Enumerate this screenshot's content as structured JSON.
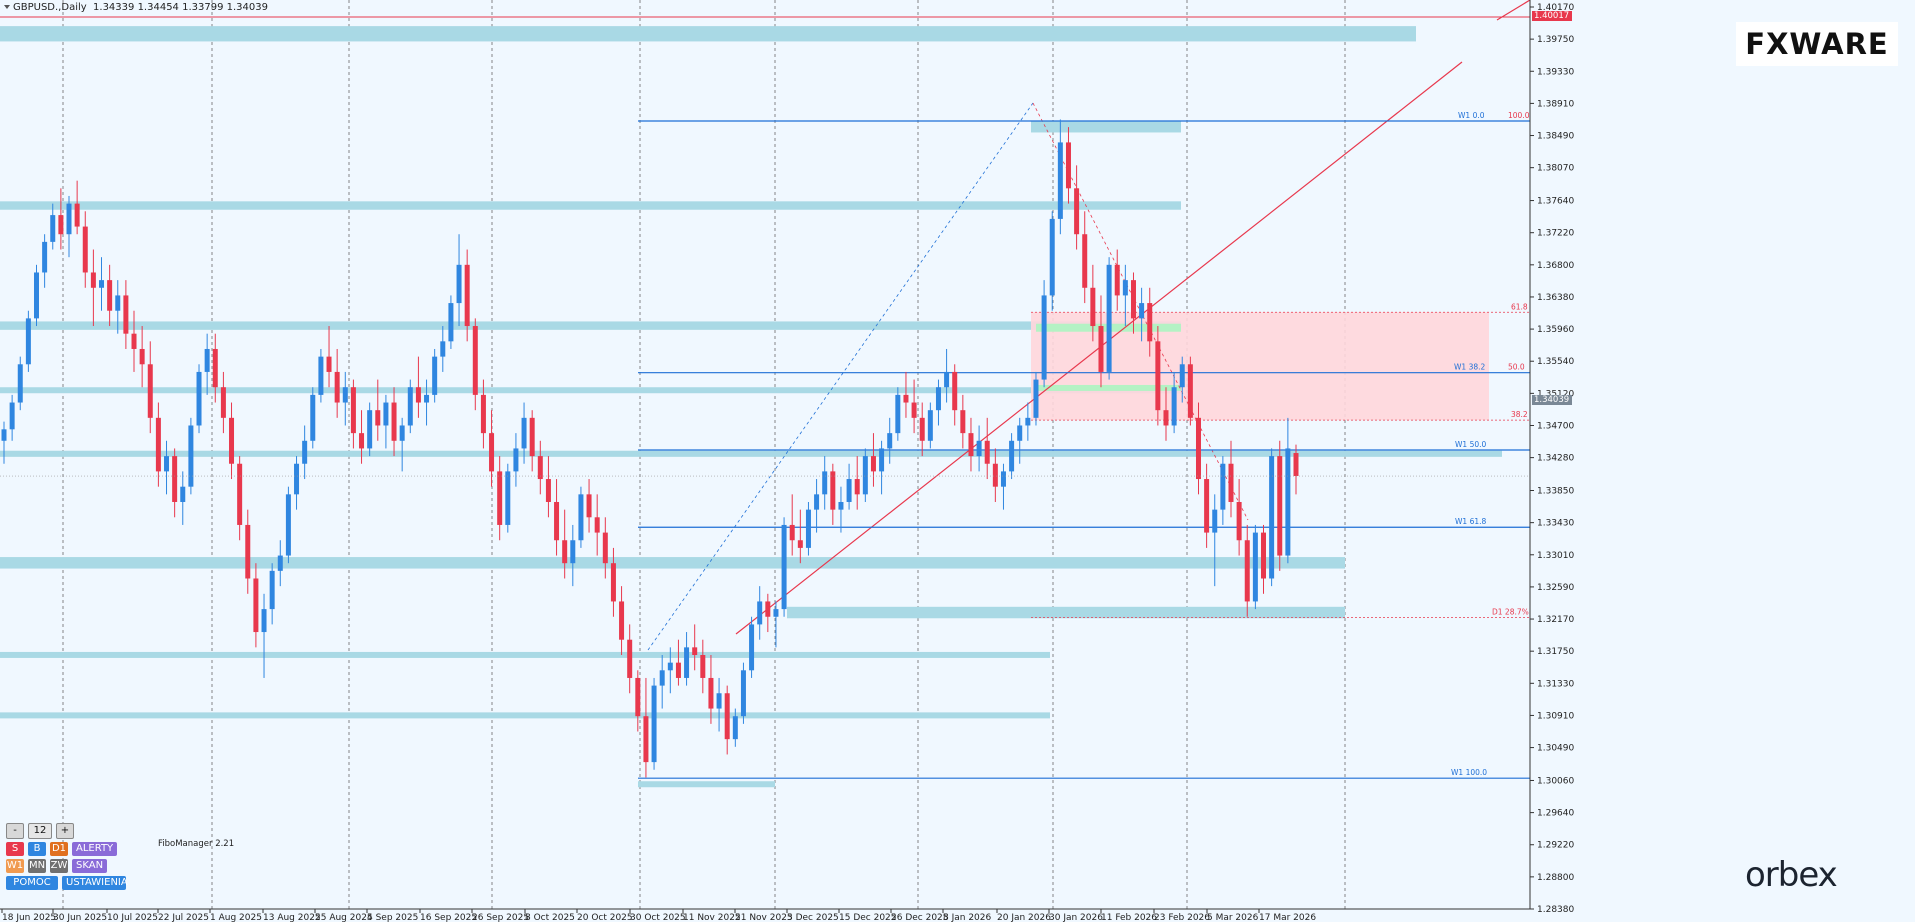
{
  "header": {
    "symbol_text": "GBPUSD.,Daily",
    "ohlc_text": "1.34339 1.34454 1.33799 1.34039"
  },
  "brand": {
    "fxware": "FXWARE",
    "orbex": "orbex"
  },
  "price_labels": {
    "current": "1.34039",
    "top": "1.40017"
  },
  "panel": {
    "minus": "-",
    "count": "12",
    "plus": "+",
    "row2": [
      "S",
      "B",
      "D1",
      "ALERTY"
    ],
    "row3": [
      "W1",
      "MN",
      "ZW",
      "SKAN"
    ],
    "row4": [
      "POMOC",
      "USTAWIENIA"
    ]
  },
  "fibo_manager": "FiboManager 2.21",
  "colors": {
    "background": "#f0f8ff",
    "zone": "#a9d9e5",
    "bull": "#2f86e0",
    "bear": "#e8384d",
    "fib_line": "#1e6fd6",
    "red_line": "#e8384d",
    "pink_zone": "#ffd6dc",
    "green_zone": "#b4f2c4"
  },
  "chart_data": {
    "type": "candlestick",
    "y_axis": {
      "ticks": [
        1.4017,
        1.3975,
        1.3933,
        1.3891,
        1.3849,
        1.3807,
        1.3764,
        1.3722,
        1.368,
        1.3638,
        1.3596,
        1.3554,
        1.3512,
        1.347,
        1.3428,
        1.3385,
        1.3343,
        1.3301,
        1.3259,
        1.3217,
        1.3175,
        1.3133,
        1.3091,
        1.3049,
        1.3006,
        1.2964,
        1.2922,
        1.288,
        1.2838
      ]
    },
    "x_axis": {
      "labels": [
        "18 Jun 2025",
        "30 Jun 2025",
        "10 Jul 2025",
        "22 Jul 2025",
        "1 Aug 2025",
        "13 Aug 2025",
        "25 Aug 2025",
        "4 Sep 2025",
        "16 Sep 2025",
        "26 Sep 2025",
        "8 Oct 2025",
        "20 Oct 2025",
        "30 Oct 2025",
        "11 Nov 2025",
        "21 Nov 2025",
        "3 Dec 2025",
        "15 Dec 2025",
        "26 Dec 2025",
        "8 Jan 2026",
        "20 Jan 2026",
        "30 Jan 2026",
        "11 Feb 2026",
        "23 Feb 2026",
        "5 Mar 2026",
        "17 Mar 2026"
      ]
    },
    "last_bar": {
      "open": 1.34339,
      "high": 1.34454,
      "low": 1.33799,
      "close": 1.34039
    },
    "fib_levels": [
      {
        "label": "W1 0.0",
        "right_label": "100.0",
        "price": 1.3868
      },
      {
        "label": "W1 38.2",
        "right_label": "50.0",
        "price": 1.3539
      },
      {
        "label": "W1 50.0",
        "price": 1.3438
      },
      {
        "label": "W1 61.8",
        "price": 1.3337
      },
      {
        "label": "W1 100.0",
        "price": 1.3009
      },
      {
        "label": "61.8",
        "price": 1.3618
      },
      {
        "label": "38.2",
        "price": 1.3477
      },
      {
        "label": "D1 28.7%",
        "price": 1.3219
      }
    ],
    "zones": [
      {
        "price_top": 1.3992,
        "price_bottom": 1.3972
      },
      {
        "price_top": 1.3763,
        "price_bottom": 1.3752
      },
      {
        "price_top": 1.3606,
        "price_bottom": 1.3595
      },
      {
        "price_top": 1.352,
        "price_bottom": 1.3513
      },
      {
        "price_top": 1.3437,
        "price_bottom": 1.3429
      },
      {
        "price_top": 1.3298,
        "price_bottom": 1.3283
      },
      {
        "price_top": 1.3174,
        "price_bottom": 1.3169
      },
      {
        "price_top": 1.3095,
        "price_bottom": 1.3091
      },
      {
        "price_top": 1.3005,
        "price_bottom": 1.2999
      },
      {
        "price_top": 1.3868,
        "price_bottom": 1.3853
      },
      {
        "price_top": 1.3233,
        "price_bottom": 1.3218
      }
    ],
    "candles": [
      [
        1.345,
        1.3475,
        1.342,
        1.3465
      ],
      [
        1.3465,
        1.351,
        1.345,
        1.35
      ],
      [
        1.35,
        1.356,
        1.349,
        1.355
      ],
      [
        1.355,
        1.362,
        1.354,
        1.361
      ],
      [
        1.361,
        1.368,
        1.36,
        1.367
      ],
      [
        1.367,
        1.372,
        1.365,
        1.371
      ],
      [
        1.371,
        1.376,
        1.37,
        1.3745
      ],
      [
        1.3745,
        1.378,
        1.37,
        1.372
      ],
      [
        1.372,
        1.377,
        1.369,
        1.376
      ],
      [
        1.376,
        1.379,
        1.372,
        1.373
      ],
      [
        1.373,
        1.375,
        1.365,
        1.367
      ],
      [
        1.367,
        1.37,
        1.36,
        1.365
      ],
      [
        1.365,
        1.369,
        1.362,
        1.366
      ],
      [
        1.366,
        1.368,
        1.36,
        1.362
      ],
      [
        1.362,
        1.366,
        1.359,
        1.364
      ],
      [
        1.364,
        1.366,
        1.357,
        1.359
      ],
      [
        1.359,
        1.362,
        1.354,
        1.357
      ],
      [
        1.357,
        1.36,
        1.352,
        1.355
      ],
      [
        1.355,
        1.358,
        1.346,
        1.348
      ],
      [
        1.348,
        1.35,
        1.339,
        1.341
      ],
      [
        1.341,
        1.345,
        1.338,
        1.343
      ],
      [
        1.343,
        1.344,
        1.335,
        1.337
      ],
      [
        1.337,
        1.341,
        1.334,
        1.339
      ],
      [
        1.339,
        1.348,
        1.338,
        1.347
      ],
      [
        1.347,
        1.355,
        1.346,
        1.354
      ],
      [
        1.354,
        1.359,
        1.351,
        1.357
      ],
      [
        1.357,
        1.359,
        1.35,
        1.352
      ],
      [
        1.352,
        1.354,
        1.346,
        1.348
      ],
      [
        1.348,
        1.35,
        1.34,
        1.342
      ],
      [
        1.342,
        1.343,
        1.332,
        1.334
      ],
      [
        1.334,
        1.336,
        1.325,
        1.327
      ],
      [
        1.327,
        1.329,
        1.318,
        1.32
      ],
      [
        1.32,
        1.325,
        1.314,
        1.323
      ],
      [
        1.323,
        1.329,
        1.321,
        1.328
      ],
      [
        1.328,
        1.332,
        1.326,
        1.33
      ],
      [
        1.33,
        1.339,
        1.329,
        1.338
      ],
      [
        1.338,
        1.343,
        1.336,
        1.342
      ],
      [
        1.342,
        1.347,
        1.34,
        1.345
      ],
      [
        1.345,
        1.352,
        1.344,
        1.351
      ],
      [
        1.351,
        1.357,
        1.35,
        1.356
      ],
      [
        1.356,
        1.36,
        1.352,
        1.354
      ],
      [
        1.354,
        1.357,
        1.348,
        1.35
      ],
      [
        1.35,
        1.354,
        1.347,
        1.352
      ],
      [
        1.352,
        1.353,
        1.344,
        1.346
      ],
      [
        1.346,
        1.349,
        1.342,
        1.344
      ],
      [
        1.344,
        1.35,
        1.343,
        1.349
      ],
      [
        1.349,
        1.353,
        1.345,
        1.347
      ],
      [
        1.347,
        1.351,
        1.344,
        1.35
      ],
      [
        1.35,
        1.352,
        1.343,
        1.345
      ],
      [
        1.345,
        1.348,
        1.341,
        1.347
      ],
      [
        1.347,
        1.353,
        1.346,
        1.352
      ],
      [
        1.352,
        1.356,
        1.348,
        1.35
      ],
      [
        1.35,
        1.353,
        1.347,
        1.351
      ],
      [
        1.351,
        1.357,
        1.35,
        1.356
      ],
      [
        1.356,
        1.36,
        1.354,
        1.358
      ],
      [
        1.358,
        1.364,
        1.357,
        1.363
      ],
      [
        1.363,
        1.372,
        1.36,
        1.368
      ],
      [
        1.368,
        1.37,
        1.358,
        1.36
      ],
      [
        1.36,
        1.361,
        1.349,
        1.351
      ],
      [
        1.351,
        1.353,
        1.344,
        1.346
      ],
      [
        1.346,
        1.349,
        1.339,
        1.341
      ],
      [
        1.341,
        1.343,
        1.332,
        1.334
      ],
      [
        1.334,
        1.342,
        1.333,
        1.341
      ],
      [
        1.341,
        1.346,
        1.339,
        1.344
      ],
      [
        1.344,
        1.35,
        1.342,
        1.348
      ],
      [
        1.348,
        1.349,
        1.341,
        1.343
      ],
      [
        1.343,
        1.345,
        1.338,
        1.34
      ],
      [
        1.34,
        1.343,
        1.335,
        1.337
      ],
      [
        1.337,
        1.34,
        1.33,
        1.332
      ],
      [
        1.332,
        1.336,
        1.327,
        1.329
      ],
      [
        1.329,
        1.334,
        1.326,
        1.332
      ],
      [
        1.332,
        1.339,
        1.331,
        1.338
      ],
      [
        1.338,
        1.34,
        1.333,
        1.335
      ],
      [
        1.335,
        1.338,
        1.33,
        1.333
      ],
      [
        1.333,
        1.335,
        1.327,
        1.329
      ],
      [
        1.329,
        1.331,
        1.322,
        1.324
      ],
      [
        1.324,
        1.326,
        1.317,
        1.319
      ],
      [
        1.319,
        1.321,
        1.312,
        1.314
      ],
      [
        1.314,
        1.315,
        1.307,
        1.309
      ],
      [
        1.309,
        1.314,
        1.301,
        1.303
      ],
      [
        1.303,
        1.314,
        1.302,
        1.313
      ],
      [
        1.313,
        1.317,
        1.31,
        1.315
      ],
      [
        1.315,
        1.318,
        1.312,
        1.316
      ],
      [
        1.316,
        1.319,
        1.313,
        1.314
      ],
      [
        1.314,
        1.32,
        1.313,
        1.318
      ],
      [
        1.318,
        1.321,
        1.315,
        1.317
      ],
      [
        1.317,
        1.319,
        1.312,
        1.314
      ],
      [
        1.314,
        1.317,
        1.308,
        1.31
      ],
      [
        1.31,
        1.314,
        1.307,
        1.312
      ],
      [
        1.312,
        1.313,
        1.304,
        1.306
      ],
      [
        1.306,
        1.31,
        1.305,
        1.309
      ],
      [
        1.309,
        1.316,
        1.308,
        1.315
      ],
      [
        1.315,
        1.322,
        1.314,
        1.321
      ],
      [
        1.321,
        1.326,
        1.319,
        1.324
      ],
      [
        1.324,
        1.325,
        1.32,
        1.322
      ],
      [
        1.322,
        1.324,
        1.318,
        1.323
      ],
      [
        1.323,
        1.335,
        1.322,
        1.334
      ],
      [
        1.334,
        1.338,
        1.33,
        1.332
      ],
      [
        1.332,
        1.336,
        1.329,
        1.331
      ],
      [
        1.331,
        1.337,
        1.33,
        1.336
      ],
      [
        1.336,
        1.34,
        1.333,
        1.338
      ],
      [
        1.338,
        1.343,
        1.336,
        1.341
      ],
      [
        1.341,
        1.342,
        1.334,
        1.336
      ],
      [
        1.336,
        1.339,
        1.333,
        1.337
      ],
      [
        1.337,
        1.342,
        1.336,
        1.34
      ],
      [
        1.34,
        1.343,
        1.336,
        1.338
      ],
      [
        1.338,
        1.344,
        1.337,
        1.343
      ],
      [
        1.343,
        1.346,
        1.339,
        1.341
      ],
      [
        1.341,
        1.345,
        1.338,
        1.344
      ],
      [
        1.344,
        1.348,
        1.342,
        1.346
      ],
      [
        1.346,
        1.352,
        1.345,
        1.351
      ],
      [
        1.351,
        1.354,
        1.348,
        1.35
      ],
      [
        1.35,
        1.353,
        1.346,
        1.348
      ],
      [
        1.348,
        1.35,
        1.343,
        1.345
      ],
      [
        1.345,
        1.35,
        1.344,
        1.349
      ],
      [
        1.349,
        1.353,
        1.347,
        1.352
      ],
      [
        1.352,
        1.357,
        1.35,
        1.354
      ],
      [
        1.354,
        1.355,
        1.347,
        1.349
      ],
      [
        1.349,
        1.351,
        1.344,
        1.346
      ],
      [
        1.346,
        1.348,
        1.341,
        1.343
      ],
      [
        1.343,
        1.347,
        1.341,
        1.345
      ],
      [
        1.345,
        1.348,
        1.34,
        1.342
      ],
      [
        1.342,
        1.344,
        1.337,
        1.339
      ],
      [
        1.339,
        1.342,
        1.336,
        1.341
      ],
      [
        1.341,
        1.346,
        1.34,
        1.345
      ],
      [
        1.345,
        1.348,
        1.342,
        1.347
      ],
      [
        1.347,
        1.35,
        1.345,
        1.348
      ],
      [
        1.348,
        1.354,
        1.347,
        1.353
      ],
      [
        1.353,
        1.366,
        1.352,
        1.364
      ],
      [
        1.364,
        1.375,
        1.362,
        1.374
      ],
      [
        1.374,
        1.387,
        1.372,
        1.384
      ],
      [
        1.384,
        1.386,
        1.376,
        1.378
      ],
      [
        1.378,
        1.381,
        1.37,
        1.372
      ],
      [
        1.372,
        1.375,
        1.363,
        1.365
      ],
      [
        1.365,
        1.368,
        1.358,
        1.36
      ],
      [
        1.36,
        1.364,
        1.352,
        1.354
      ],
      [
        1.354,
        1.369,
        1.353,
        1.368
      ],
      [
        1.368,
        1.37,
        1.362,
        1.364
      ],
      [
        1.364,
        1.368,
        1.36,
        1.366
      ],
      [
        1.366,
        1.367,
        1.359,
        1.361
      ],
      [
        1.361,
        1.365,
        1.358,
        1.363
      ],
      [
        1.363,
        1.365,
        1.356,
        1.358
      ],
      [
        1.358,
        1.36,
        1.347,
        1.349
      ],
      [
        1.349,
        1.352,
        1.345,
        1.347
      ],
      [
        1.347,
        1.354,
        1.346,
        1.352
      ],
      [
        1.352,
        1.356,
        1.35,
        1.355
      ],
      [
        1.355,
        1.356,
        1.347,
        1.348
      ],
      [
        1.348,
        1.35,
        1.338,
        1.34
      ],
      [
        1.34,
        1.342,
        1.331,
        1.333
      ],
      [
        1.333,
        1.338,
        1.326,
        1.336
      ],
      [
        1.336,
        1.343,
        1.334,
        1.342
      ],
      [
        1.342,
        1.345,
        1.335,
        1.337
      ],
      [
        1.337,
        1.34,
        1.33,
        1.332
      ],
      [
        1.332,
        1.334,
        1.322,
        1.324
      ],
      [
        1.324,
        1.334,
        1.323,
        1.333
      ],
      [
        1.333,
        1.334,
        1.325,
        1.327
      ],
      [
        1.327,
        1.344,
        1.326,
        1.343
      ],
      [
        1.343,
        1.345,
        1.328,
        1.33
      ],
      [
        1.33,
        1.348,
        1.329,
        1.344
      ],
      [
        1.3434,
        1.3445,
        1.338,
        1.3404
      ]
    ]
  }
}
